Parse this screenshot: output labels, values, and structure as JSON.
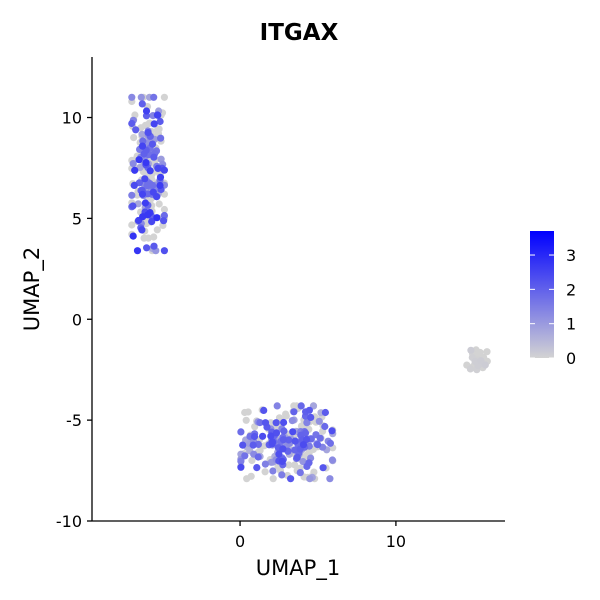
{
  "chart_data": {
    "type": "scatter",
    "title": "ITGAX",
    "xlabel": "UMAP_1",
    "ylabel": "UMAP_2",
    "xlim": [
      -9.5,
      17
    ],
    "ylim": [
      -10,
      13
    ],
    "x_ticks": [
      0,
      10
    ],
    "y_ticks": [
      10,
      5,
      0,
      -5,
      -10
    ],
    "color_scale": {
      "low_color": "#d3d3d3",
      "high_color": "#0000ff",
      "min": 0,
      "max": 3.7,
      "legend_ticks": [
        3,
        2,
        1,
        0
      ]
    },
    "clusters": [
      {
        "name": "cluster-upper-left",
        "center": [
          -5.9,
          7.2
        ],
        "spread": [
          0.55,
          2.0
        ],
        "n": 230,
        "expr_mean": 1.2
      },
      {
        "name": "cluster-bottom",
        "center": [
          3.0,
          -6.1
        ],
        "spread": [
          1.55,
          0.95
        ],
        "n": 250,
        "expr_mean": 1.0
      },
      {
        "name": "cluster-right",
        "center": [
          15.2,
          -2.0
        ],
        "spread": [
          0.35,
          0.28
        ],
        "n": 30,
        "expr_mean": 0.05
      }
    ]
  }
}
